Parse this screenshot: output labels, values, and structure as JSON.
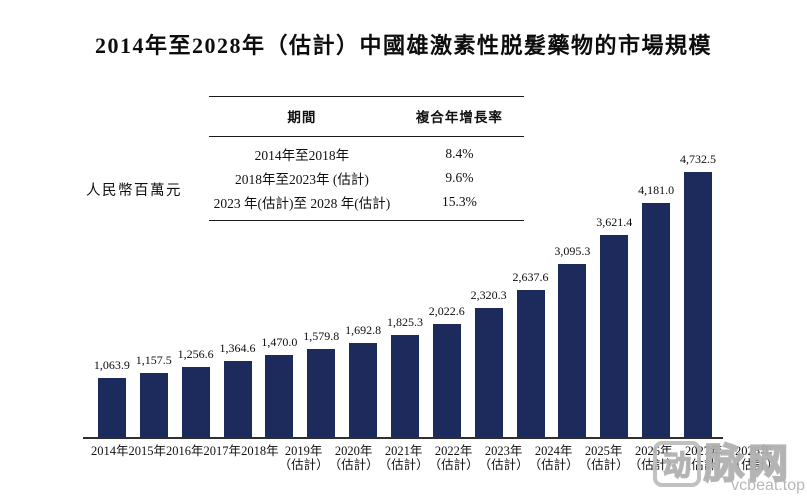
{
  "title": "2014年至2028年（估計）中國雄激素性脱髮藥物的市場規模",
  "y_axis_unit": "人民幣百萬元",
  "cagr_table": {
    "headers": [
      "期間",
      "複合年增長率"
    ],
    "rows": [
      [
        "2014年至2018年",
        "8.4%"
      ],
      [
        "2018年至2023年 (估計)",
        "9.6%"
      ],
      [
        "2023 年(估計)至 2028 年(估計)",
        "15.3%"
      ]
    ]
  },
  "chart_data": {
    "type": "bar",
    "title": "2014年至2028年（估計）中國雄激素性脱髮藥物的市場規模",
    "ylabel": "人民幣百萬元",
    "xlabel": "",
    "ylim": [
      0,
      4732.5
    ],
    "grid": false,
    "bar_color": "#1d2a5c",
    "categories": [
      {
        "year": "2014年",
        "note": ""
      },
      {
        "year": "2015年",
        "note": ""
      },
      {
        "year": "2016年",
        "note": ""
      },
      {
        "year": "2017年",
        "note": ""
      },
      {
        "year": "2018年",
        "note": ""
      },
      {
        "year": "2019年",
        "note": "（估計）"
      },
      {
        "year": "2020年",
        "note": "（估計）"
      },
      {
        "year": "2021年",
        "note": "（估計）"
      },
      {
        "year": "2022年",
        "note": "（估計）"
      },
      {
        "year": "2023年",
        "note": "（估計）"
      },
      {
        "year": "2024年",
        "note": "（估計）"
      },
      {
        "year": "2025年",
        "note": "（估計）"
      },
      {
        "year": "2026年",
        "note": "（估計）"
      },
      {
        "year": "2027年",
        "note": "（估計）"
      },
      {
        "year": "2028年",
        "note": "（估計）"
      }
    ],
    "values": [
      1063.9,
      1157.5,
      1256.6,
      1364.6,
      1470.0,
      1579.8,
      1692.8,
      1825.3,
      2022.6,
      2320.3,
      2637.6,
      3095.3,
      3621.4,
      4181.0,
      4732.5
    ],
    "value_labels": [
      "1,063.9",
      "1,157.5",
      "1,256.6",
      "1,364.6",
      "1,470.0",
      "1,579.8",
      "1,692.8",
      "1,825.3",
      "2,022.6",
      "2,320.3",
      "2,637.6",
      "3,095.3",
      "3,621.4",
      "4,181.0",
      "4,732.5"
    ]
  },
  "watermark": {
    "logo_char_boxed": "动",
    "logo_chars": "脉网",
    "url_text": "vcbeat.top"
  }
}
